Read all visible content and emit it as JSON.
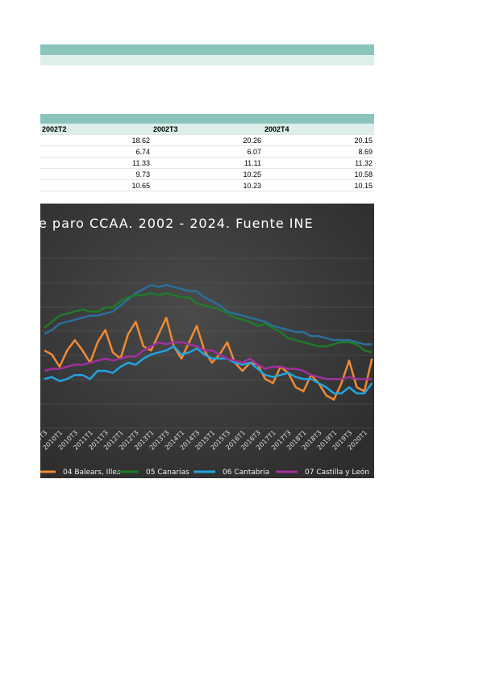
{
  "table": {
    "columns": [
      "2002T2",
      "2002T3",
      "2002T4"
    ],
    "rows": [
      [
        18.62,
        20.26,
        20.15
      ],
      [
        6.74,
        6.07,
        8.69
      ],
      [
        11.33,
        11.11,
        11.32
      ],
      [
        9.73,
        10.25,
        10.58
      ],
      [
        10.65,
        10.23,
        10.15
      ]
    ]
  },
  "chart_data": {
    "type": "line",
    "title": "e paro CCAA. 2002 - 2024. Fuente INE",
    "ylim": [
      0,
      47
    ],
    "categories": [
      "2009T3",
      null,
      "2010T1",
      null,
      "2010T3",
      null,
      "2011T1",
      null,
      "2011T3",
      null,
      "2012T1",
      null,
      "2012T3",
      null,
      "2013T1",
      null,
      "2013T3",
      null,
      "2014T1",
      null,
      "2014T3",
      null,
      "2015T1",
      null,
      "2015T3",
      null,
      "2016T1",
      null,
      "2016T3",
      null,
      "2017T1",
      null,
      "2017T3",
      null,
      "2018T1",
      null,
      "2018T3",
      null,
      "2019T1",
      null,
      "2019T3",
      null,
      "2020T1",
      null
    ],
    "series": [
      {
        "name": null,
        "color": "#2b6f99",
        "values": [
          23,
          24,
          25.5,
          26,
          26.5,
          27,
          27.5,
          27.5,
          28,
          28.5,
          30,
          31.5,
          33,
          34,
          35,
          34.5,
          35,
          34.5,
          34,
          33.5,
          33.5,
          32,
          31,
          30,
          28.5,
          28,
          27.5,
          27,
          26.5,
          26,
          25,
          24.5,
          24,
          23.5,
          23.5,
          22.5,
          22.5,
          22,
          21.5,
          21.5,
          21.5,
          21,
          20.5,
          20.5
        ]
      },
      {
        "name": "04 Balears, Illes",
        "color": "#f08a33",
        "values": [
          19,
          18,
          15,
          19,
          21.5,
          19,
          16,
          21,
          24,
          18.5,
          17,
          23,
          26,
          20,
          19,
          23,
          27,
          20,
          17,
          21,
          25,
          19,
          16,
          18,
          21,
          16,
          14,
          16,
          15.5,
          12,
          11,
          15,
          13.5,
          10,
          9,
          13,
          11,
          8,
          7,
          11,
          16.5,
          10,
          9,
          17
        ]
      },
      {
        "name": "05 Canarias",
        "color": "#1f7a2a",
        "values": [
          24.5,
          26,
          27.5,
          28,
          28.5,
          29,
          28.5,
          28.5,
          29.5,
          29.5,
          31,
          32,
          32.5,
          32.5,
          33,
          32.5,
          33,
          32.5,
          32,
          32,
          30.5,
          30,
          29.5,
          29,
          28,
          27,
          26.5,
          26,
          25,
          25.5,
          24.5,
          23.5,
          22,
          21.5,
          21,
          20.5,
          20,
          20,
          20.5,
          21,
          21,
          20.5,
          19,
          18.5
        ]
      },
      {
        "name": "06 Cantabria",
        "color": "#22a4e0",
        "values": [
          12,
          12.5,
          11.5,
          12,
          13,
          13,
          12,
          14,
          14,
          13.5,
          15,
          16,
          15.5,
          17,
          18,
          18.5,
          19,
          20,
          18,
          18.5,
          19.5,
          18,
          17,
          17,
          17,
          16,
          15.5,
          16,
          14.5,
          13,
          12.5,
          13,
          13.5,
          12.5,
          12,
          12,
          11,
          10,
          8.5,
          8.5,
          10,
          8.5,
          8.5,
          11
        ]
      },
      {
        "name": "07 Castilla y León",
        "color": "#a1309c",
        "values": [
          14,
          14.5,
          14.5,
          15,
          15.5,
          15.5,
          16,
          16.5,
          17,
          16.5,
          17,
          17.5,
          17.5,
          19,
          20,
          21,
          20.5,
          21,
          21,
          20.5,
          20,
          19,
          19,
          18,
          17,
          16.5,
          16,
          17,
          15.5,
          14.5,
          15,
          15,
          14.5,
          14.5,
          14,
          13,
          12.5,
          12,
          12,
          12,
          12.5,
          12,
          12,
          12
        ]
      }
    ]
  }
}
